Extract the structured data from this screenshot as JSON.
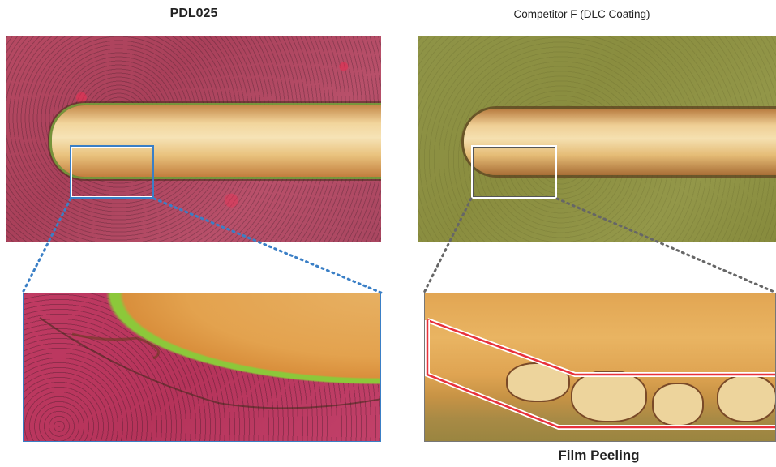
{
  "left_panel": {
    "title": "PDL025"
  },
  "right_panel": {
    "title": "Competitor F (DLC Coating)",
    "caption": "Film Peeling"
  },
  "colors": {
    "pdl_highlight": "#3a7fc6",
    "competitor_highlight": "#ffffff",
    "peeling_outline": "#e8323c"
  }
}
